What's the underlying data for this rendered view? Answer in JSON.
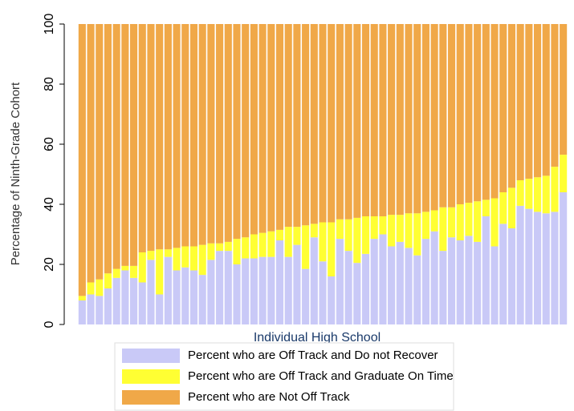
{
  "chart_data": {
    "type": "stacked_bar",
    "ylabel": "Percentage of Ninth-Grade Cohort",
    "xlabel": "Individual High School",
    "categories": [
      null,
      null,
      null,
      null,
      null,
      null,
      null,
      null,
      null,
      null,
      null,
      null,
      null,
      null,
      null,
      null,
      null,
      null,
      null,
      null,
      null,
      null,
      null,
      null,
      null,
      null,
      null,
      null,
      null,
      null,
      null,
      null,
      null,
      null,
      null,
      null,
      null,
      null,
      null,
      null,
      null,
      null,
      null,
      null,
      null,
      null,
      null,
      null,
      null,
      null,
      null,
      null,
      null,
      null,
      null,
      null,
      null
    ],
    "series": [
      {
        "name": "Percent who are Off Track and Do not Recover",
        "color": "#c9c9f7",
        "values": [
          8,
          10,
          9.5,
          12,
          15.5,
          18,
          15.5,
          14,
          21.5,
          10,
          22.5,
          18,
          19,
          18,
          16.5,
          21.5,
          24.5,
          24.5,
          20,
          22,
          22,
          22.5,
          22.5,
          28,
          22.5,
          26.5,
          18.5,
          29,
          21,
          16,
          28.5,
          24.5,
          20.5,
          23.5,
          28.5,
          30,
          26,
          27.5,
          25.5,
          23,
          28.5,
          31,
          24.5,
          29,
          28,
          29.5,
          27.5,
          36,
          26,
          33.5,
          32,
          39.5,
          38.5,
          37.5,
          37,
          37.5,
          44
        ]
      },
      {
        "name": "Percent who are Off Track and Graduate On Time",
        "color": "#ffff33",
        "values": [
          1.5,
          4,
          5.5,
          5,
          3,
          1.5,
          4,
          10,
          3,
          15,
          2.5,
          7.5,
          7,
          8,
          10,
          5.5,
          2.5,
          3,
          8.5,
          7,
          8,
          8,
          8.5,
          3.5,
          10,
          6,
          14.5,
          4.5,
          13,
          18,
          6.5,
          10.5,
          15,
          12.5,
          7.5,
          6,
          10.5,
          9,
          11.5,
          14,
          9,
          7,
          14.5,
          10,
          12,
          11,
          13.5,
          5.5,
          16,
          10.5,
          13.5,
          8.5,
          10,
          11.5,
          12.5,
          15,
          12.5
        ]
      },
      {
        "name": "Percent who are Not Off Track",
        "color": "#f0a848",
        "values": [
          90.5,
          86,
          85,
          83,
          81.5,
          80.5,
          80.5,
          76,
          75.5,
          75,
          75,
          74.5,
          74,
          74,
          73.5,
          73,
          73,
          72.5,
          71.5,
          71,
          70,
          69.5,
          69,
          68.5,
          67.5,
          67.5,
          67,
          66.5,
          66,
          66,
          65,
          65,
          64.5,
          64,
          64,
          64,
          63.5,
          63.5,
          63,
          63,
          62.5,
          62,
          61,
          61,
          60,
          59.5,
          59,
          58.5,
          58,
          56,
          54.5,
          52,
          51.5,
          51,
          50.5,
          47.5,
          43.5
        ]
      }
    ],
    "ylim": [
      0,
      100
    ],
    "yticks": [
      0,
      20,
      40,
      60,
      80,
      100
    ],
    "grid": false
  }
}
